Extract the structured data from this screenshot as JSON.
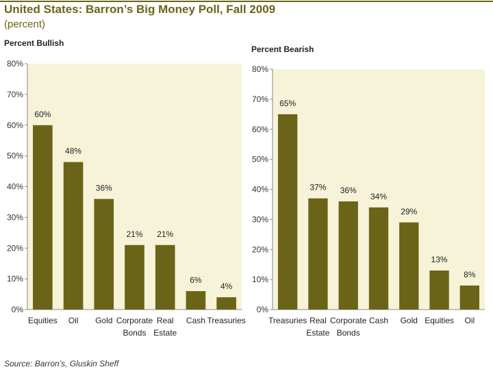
{
  "header": {
    "title": "United States: Barron’s Big Money Poll, Fall 2009",
    "subtitle": "(percent)"
  },
  "footer": {
    "source": "Source: Barron’s, Gluskin Sheff"
  },
  "colors": {
    "bar": "#6b6418",
    "panel": "#f6f3d9",
    "accent": "#6b6418"
  },
  "chart_data": [
    {
      "type": "bar",
      "title": "Percent Bullish",
      "categories": [
        "Equities",
        "Oil",
        "Gold",
        "Corporate Bonds",
        "Real Estate",
        "Cash",
        "Treasuries"
      ],
      "category_lines": [
        [
          "Equities"
        ],
        [
          "Oil"
        ],
        [
          "Gold"
        ],
        [
          "Corporate",
          "Bonds"
        ],
        [
          "Real",
          "Estate"
        ],
        [
          "Cash"
        ],
        [
          "Treasuries"
        ]
      ],
      "values": [
        60,
        48,
        36,
        21,
        21,
        6,
        4
      ],
      "data_labels": [
        "60%",
        "48%",
        "36%",
        "21%",
        "21%",
        "6%",
        "4%"
      ],
      "ylim": [
        0,
        80
      ],
      "yticks": [
        0,
        10,
        20,
        30,
        40,
        50,
        60,
        70,
        80
      ],
      "ytick_labels": [
        "0%",
        "10%",
        "20%",
        "30%",
        "40%",
        "50%",
        "60%",
        "70%",
        "80%"
      ],
      "xlabel": "",
      "ylabel": "",
      "grid": false
    },
    {
      "type": "bar",
      "title": "Percent Bearish",
      "categories": [
        "Treasuries",
        "Real Estate",
        "Corporate Bonds",
        "Cash",
        "Gold",
        "Equities",
        "Oil"
      ],
      "category_lines": [
        [
          "Treasuries"
        ],
        [
          "Real",
          "Estate"
        ],
        [
          "Corporate",
          "Bonds"
        ],
        [
          "Cash"
        ],
        [
          "Gold"
        ],
        [
          "Equities"
        ],
        [
          "Oil"
        ]
      ],
      "values": [
        65,
        37,
        36,
        34,
        29,
        13,
        8
      ],
      "data_labels": [
        "65%",
        "37%",
        "36%",
        "34%",
        "29%",
        "13%",
        "8%"
      ],
      "ylim": [
        0,
        80
      ],
      "yticks": [
        0,
        10,
        20,
        30,
        40,
        50,
        60,
        70,
        80
      ],
      "ytick_labels": [
        "0%",
        "10%",
        "20%",
        "30%",
        "40%",
        "50%",
        "60%",
        "70%",
        "80%"
      ],
      "xlabel": "",
      "ylabel": "",
      "grid": false
    }
  ]
}
